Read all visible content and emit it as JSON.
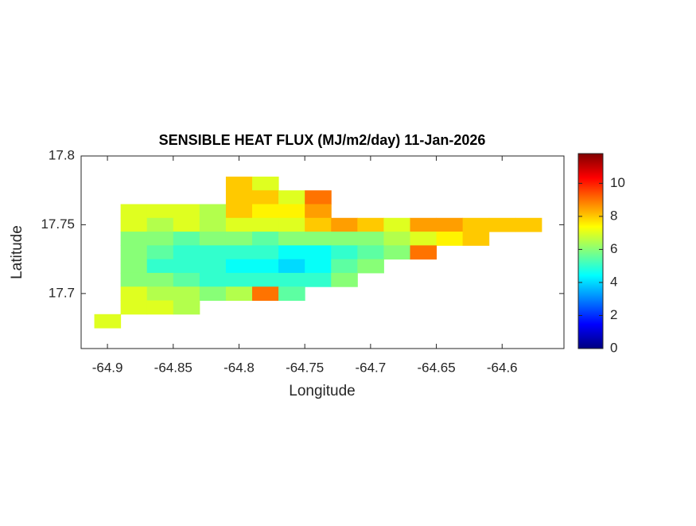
{
  "chart_data": {
    "type": "heatmap",
    "title": "SENSIBLE HEAT FLUX (MJ/m2/day) 11-Jan-2026",
    "xlabel": "Longitude",
    "ylabel": "Latitude",
    "x": [
      -64.9,
      -64.88,
      -64.86,
      -64.84,
      -64.82,
      -64.8,
      -64.78,
      -64.76,
      -64.74,
      -64.72,
      -64.7,
      -64.68,
      -64.66,
      -64.64,
      -64.62,
      -64.6,
      -64.58,
      -64.56
    ],
    "y": [
      17.78,
      17.77,
      17.76,
      17.75,
      17.74,
      17.73,
      17.72,
      17.71,
      17.7,
      17.69,
      17.68
    ],
    "values": [
      [
        null,
        null,
        null,
        null,
        null,
        8,
        7,
        null,
        null,
        null,
        null,
        null,
        null,
        null,
        null,
        null,
        null,
        null
      ],
      [
        null,
        null,
        null,
        null,
        null,
        8,
        8,
        7,
        9,
        null,
        null,
        null,
        null,
        null,
        null,
        null,
        null,
        null
      ],
      [
        null,
        7,
        7,
        7,
        6.5,
        8,
        7.5,
        7.5,
        8.5,
        null,
        null,
        null,
        null,
        null,
        null,
        null,
        null,
        null
      ],
      [
        null,
        7,
        6.5,
        7,
        6.5,
        7,
        7,
        7,
        8,
        8.5,
        8,
        7,
        8.5,
        8.5,
        8,
        8,
        8,
        null
      ],
      [
        null,
        6,
        6,
        5.5,
        6,
        6,
        5.5,
        6,
        6,
        6,
        6,
        6.5,
        7,
        7.5,
        8,
        null,
        null,
        null
      ],
      [
        null,
        6,
        5.5,
        5,
        5,
        5,
        5,
        4.5,
        4.5,
        5,
        5.5,
        6,
        9,
        null,
        null,
        null,
        null,
        null
      ],
      [
        null,
        6,
        5,
        5,
        5,
        4.5,
        4.5,
        4,
        4.5,
        5.5,
        6,
        null,
        null,
        null,
        null,
        null,
        null,
        null
      ],
      [
        null,
        6,
        6,
        5.5,
        5,
        5,
        5,
        5,
        5,
        6,
        null,
        null,
        null,
        null,
        null,
        null,
        null,
        null
      ],
      [
        null,
        7,
        6.5,
        6.5,
        6,
        6.5,
        9,
        5.5,
        null,
        null,
        null,
        null,
        null,
        null,
        null,
        null,
        null,
        null
      ],
      [
        null,
        7,
        7,
        6.5,
        null,
        null,
        null,
        null,
        null,
        null,
        null,
        null,
        null,
        null,
        null,
        null,
        null,
        null
      ],
      [
        7,
        null,
        null,
        null,
        null,
        null,
        null,
        null,
        null,
        null,
        null,
        null,
        null,
        null,
        null,
        null,
        null,
        null
      ]
    ],
    "xlim": [
      -64.92,
      -64.553
    ],
    "ylim": [
      17.66,
      17.8
    ],
    "xticks": [
      -64.9,
      -64.85,
      -64.8,
      -64.75,
      -64.7,
      -64.65,
      -64.6
    ],
    "yticks": [
      17.7,
      17.75,
      17.8
    ],
    "colormap": "jet",
    "clim": [
      0,
      11.8
    ],
    "cticks": [
      0,
      2,
      4,
      6,
      8,
      10
    ]
  }
}
